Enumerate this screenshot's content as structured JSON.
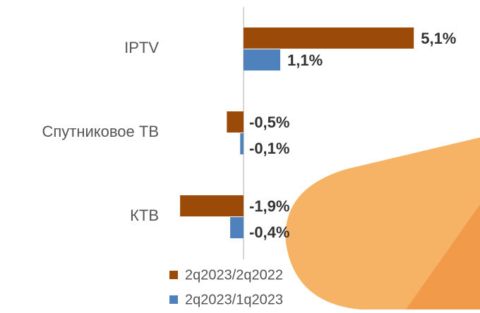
{
  "chart_data": {
    "type": "bar",
    "orientation": "horizontal",
    "categories": [
      "IPTV",
      "Спутниковое ТВ",
      "КТВ"
    ],
    "series": [
      {
        "name": "2q2023/2q2022",
        "color": "#9c4a08",
        "values": [
          5.1,
          -0.5,
          -1.9
        ],
        "value_labels": [
          "5,1%",
          "-0,5%",
          "-1,9%"
        ]
      },
      {
        "name": "2q2023/1q2023",
        "color": "#4f81bd",
        "values": [
          1.1,
          -0.1,
          -0.4
        ],
        "value_labels": [
          "1,1%",
          "-0,1%",
          "-0,4%"
        ]
      }
    ]
  }
}
